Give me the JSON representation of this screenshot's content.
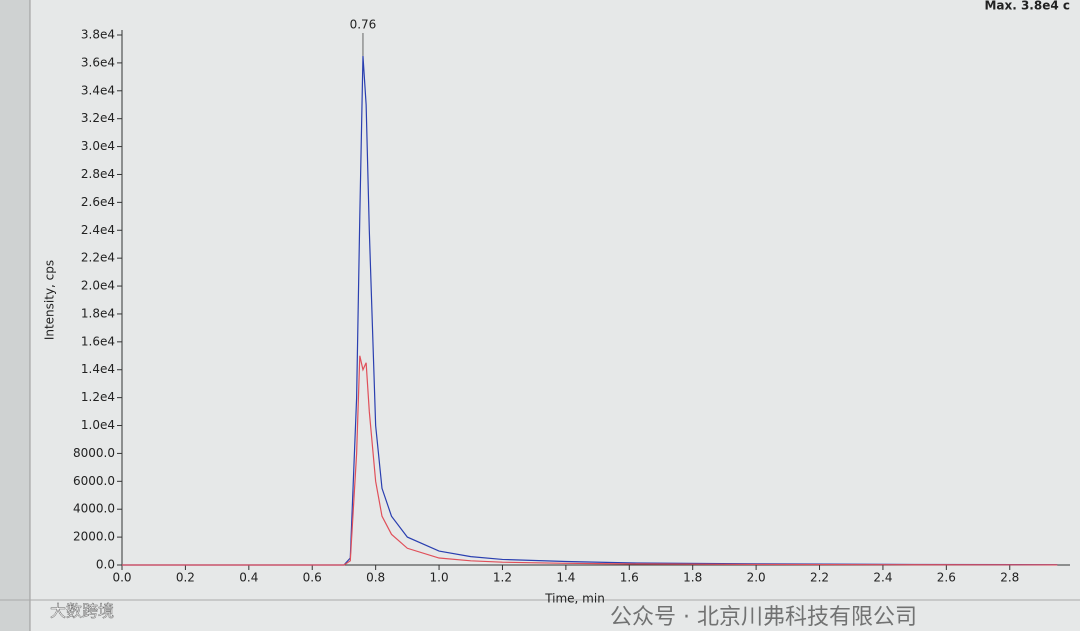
{
  "chart_data": {
    "type": "line",
    "header_text": "Max. 3.8e4 c",
    "xlabel": "Time, min",
    "ylabel": "Intensity, cps",
    "annotations": [
      {
        "text": "0.76"
      }
    ],
    "watermarks": [
      "大数跨境",
      "公众号 · 北京川弗科技有限公司"
    ],
    "xlim": [
      0,
      2.99
    ],
    "ylim": [
      0,
      38000
    ],
    "xticks": [
      {
        "value": 0,
        "label": "0.0"
      },
      0.2,
      0.4,
      0.6,
      0.8,
      {
        "value": 1,
        "label": "1.0"
      },
      1.2,
      1.4,
      1.6,
      1.8,
      {
        "value": 2,
        "label": "2.0"
      },
      2.2,
      2.4,
      2.6,
      2.8
    ],
    "yticks": [
      {
        "value": 0,
        "label": "0.0"
      },
      {
        "value": 2000,
        "label": "2000.0"
      },
      {
        "value": 4000,
        "label": "4000.0"
      },
      {
        "value": 6000,
        "label": "6000.0"
      },
      {
        "value": 8000,
        "label": "8000.0"
      },
      {
        "value": 10000,
        "label": "1.0e4"
      },
      {
        "value": 12000,
        "label": "1.2e4"
      },
      {
        "value": 14000,
        "label": "1.4e4"
      },
      {
        "value": 16000,
        "label": "1.6e4"
      },
      {
        "value": 18000,
        "label": "1.8e4"
      },
      {
        "value": 20000,
        "label": "2.0e4"
      },
      {
        "value": 22000,
        "label": "2.2e4"
      },
      {
        "value": 24000,
        "label": "2.4e4"
      },
      {
        "value": 26000,
        "label": "2.6e4"
      },
      {
        "value": 28000,
        "label": "2.8e4"
      },
      {
        "value": 30000,
        "label": "3.0e4"
      },
      {
        "value": 32000,
        "label": "3.2e4"
      },
      {
        "value": 34000,
        "label": "3.4e4"
      },
      {
        "value": 36000,
        "label": "3.6e4"
      },
      {
        "value": 38000,
        "label": "3.8e4"
      }
    ],
    "series": [
      {
        "color": "#2a3fb0",
        "x": [
          0,
          0.7,
          0.72,
          0.74,
          0.75,
          0.76,
          0.77,
          0.78,
          0.8,
          0.82,
          0.85,
          0.9,
          1.0,
          1.1,
          1.2,
          1.4,
          1.6,
          2.0,
          2.5,
          2.95
        ],
        "values": [
          0,
          0,
          500,
          12000,
          25000,
          36500,
          33000,
          24000,
          10000,
          5500,
          3500,
          2000,
          1000,
          600,
          400,
          250,
          150,
          80,
          40,
          20
        ]
      },
      {
        "color": "#e0505a",
        "x": [
          0,
          0.7,
          0.72,
          0.74,
          0.75,
          0.76,
          0.77,
          0.78,
          0.8,
          0.82,
          0.85,
          0.9,
          1.0,
          1.1,
          1.2,
          1.4,
          1.6,
          2.0,
          2.5,
          2.95
        ],
        "values": [
          0,
          0,
          300,
          8000,
          15000,
          14000,
          14500,
          11000,
          6000,
          3500,
          2200,
          1200,
          500,
          300,
          200,
          120,
          80,
          40,
          20,
          10
        ]
      }
    ]
  }
}
